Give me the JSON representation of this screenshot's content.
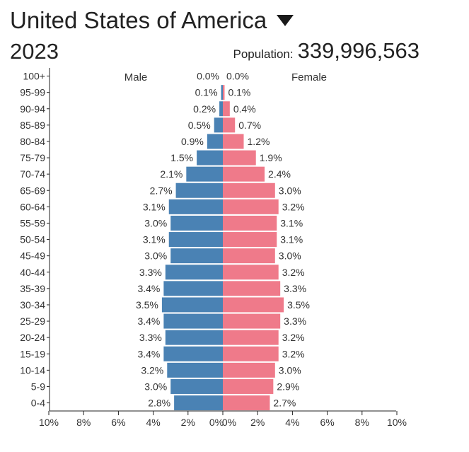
{
  "header": {
    "country": "United States of America",
    "dropdown_icon": "triangle-down-icon",
    "year": "2023",
    "population_label": "Population:",
    "population_value": "339,996,563"
  },
  "chart_data": {
    "type": "bar",
    "orientation": "horizontal-population-pyramid",
    "legend": {
      "male": "Male",
      "female": "Female"
    },
    "colors": {
      "male": "#4a82b4",
      "female": "#ef7a8a"
    },
    "categories": [
      "100+",
      "95-99",
      "90-94",
      "85-89",
      "80-84",
      "75-79",
      "70-74",
      "65-69",
      "60-64",
      "55-59",
      "50-54",
      "45-49",
      "40-44",
      "35-39",
      "30-34",
      "25-29",
      "20-24",
      "15-19",
      "10-14",
      "5-9",
      "0-4"
    ],
    "series": [
      {
        "name": "Male",
        "side": "left",
        "values": [
          0.0,
          0.1,
          0.2,
          0.5,
          0.9,
          1.5,
          2.1,
          2.7,
          3.1,
          3.0,
          3.1,
          3.0,
          3.3,
          3.4,
          3.5,
          3.4,
          3.3,
          3.4,
          3.2,
          3.0,
          2.8
        ]
      },
      {
        "name": "Female",
        "side": "right",
        "values": [
          0.0,
          0.1,
          0.4,
          0.7,
          1.2,
          1.9,
          2.4,
          3.0,
          3.2,
          3.1,
          3.1,
          3.0,
          3.2,
          3.3,
          3.5,
          3.3,
          3.2,
          3.2,
          3.0,
          2.9,
          2.7
        ]
      }
    ],
    "x_ticks": [
      "10%",
      "8%",
      "6%",
      "4%",
      "2%",
      "0%",
      "0%",
      "2%",
      "4%",
      "6%",
      "8%",
      "10%"
    ],
    "xlim": [
      -10,
      10
    ],
    "unit": "%"
  }
}
